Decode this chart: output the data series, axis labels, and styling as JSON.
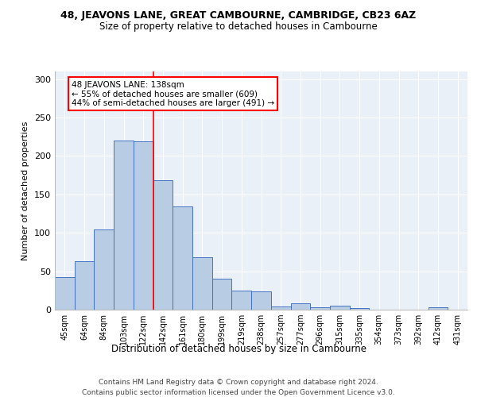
{
  "title1": "48, JEAVONS LANE, GREAT CAMBOURNE, CAMBRIDGE, CB23 6AZ",
  "title2": "Size of property relative to detached houses in Cambourne",
  "xlabel": "Distribution of detached houses by size in Cambourne",
  "ylabel": "Number of detached properties",
  "bar_labels": [
    "45sqm",
    "64sqm",
    "84sqm",
    "103sqm",
    "122sqm",
    "142sqm",
    "161sqm",
    "180sqm",
    "199sqm",
    "219sqm",
    "238sqm",
    "257sqm",
    "277sqm",
    "296sqm",
    "315sqm",
    "335sqm",
    "354sqm",
    "373sqm",
    "392sqm",
    "412sqm",
    "431sqm"
  ],
  "bar_values": [
    42,
    63,
    104,
    220,
    219,
    168,
    134,
    68,
    40,
    25,
    24,
    4,
    8,
    3,
    5,
    2,
    0,
    0,
    0,
    3,
    0
  ],
  "bar_color": "#b8cce4",
  "bar_edge_color": "#4472c4",
  "bg_color": "#eaf0f8",
  "annotation_text1": "48 JEAVONS LANE: 138sqm",
  "annotation_text2": "← 55% of detached houses are smaller (609)",
  "annotation_text3": "44% of semi-detached houses are larger (491) →",
  "vline_color": "red",
  "footer1": "Contains HM Land Registry data © Crown copyright and database right 2024.",
  "footer2": "Contains public sector information licensed under the Open Government Licence v3.0.",
  "ylim": [
    0,
    310
  ],
  "yticks": [
    0,
    50,
    100,
    150,
    200,
    250,
    300
  ],
  "vline_x": 4.5
}
